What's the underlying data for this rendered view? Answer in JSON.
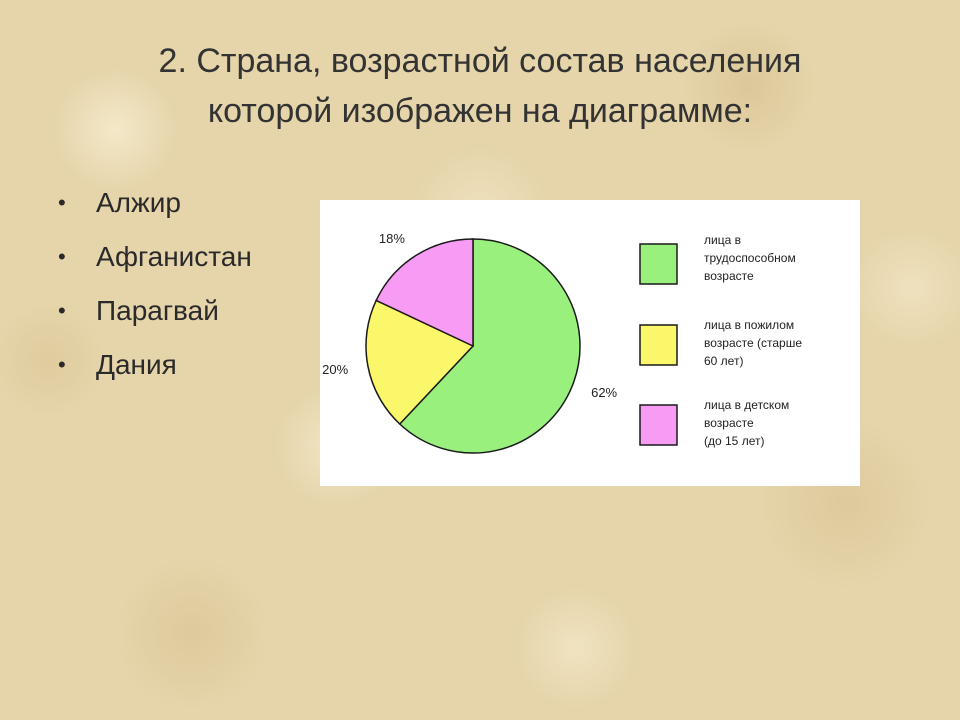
{
  "title": {
    "line1": "2.  Страна, возрастной состав населения",
    "line2": "которой изображен на диаграмме:"
  },
  "options": [
    "Алжир",
    "Афганистан",
    "Парагвай",
    "Дания"
  ],
  "bullet_char": "•",
  "chart_data": {
    "type": "pie",
    "title": "",
    "slices": [
      {
        "label": "лица в трудоспособном возрасте",
        "label_lines": [
          "лица в",
          "трудоспособном",
          "возрасте"
        ],
        "value": 62,
        "value_label": "62%",
        "color": "#99f07c"
      },
      {
        "label": "лица в пожилом возрасте (старше 60 лет)",
        "label_lines": [
          "лица в пожилом",
          "возрасте (старше",
          "60 лет)"
        ],
        "value": 20,
        "value_label": "20%",
        "color": "#fbf76b"
      },
      {
        "label": "лица в детском возрасте (до 15 лет)",
        "label_lines": [
          "лица в детском",
          "возрасте",
          "(до 15 лет)"
        ],
        "value": 18,
        "value_label": "18%",
        "color": "#f79bf5"
      }
    ],
    "start": "12 o'clock",
    "direction": "clockwise",
    "legend_position": "right"
  }
}
